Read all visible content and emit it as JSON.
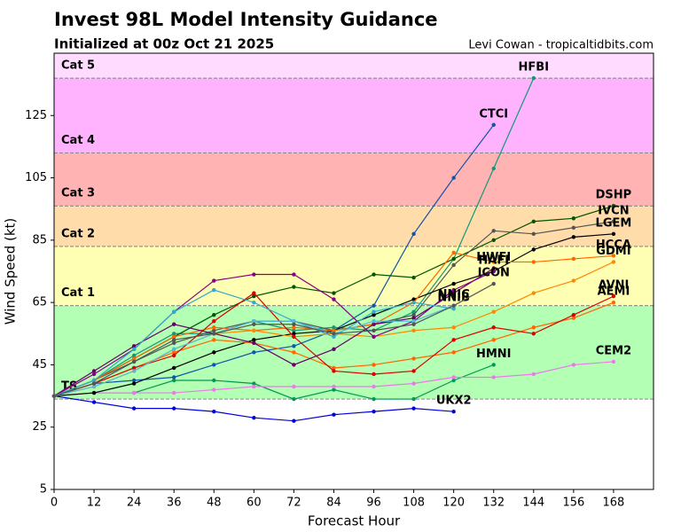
{
  "chart_data": {
    "type": "line",
    "title": "Invest 98L Model Intensity Guidance",
    "subtitle": "Initialized at 00z Oct 21 2025",
    "credit": "Levi Cowan - tropicaltidbits.com",
    "x_label": "Forecast Hour",
    "y_label": "Wind Speed (kt)",
    "xlim": [
      0,
      180
    ],
    "ylim": [
      5,
      145
    ],
    "xticks": [
      0,
      12,
      24,
      36,
      48,
      60,
      72,
      84,
      96,
      108,
      120,
      132,
      144,
      156,
      168
    ],
    "yticks": [
      5,
      25,
      45,
      65,
      85,
      105,
      125
    ],
    "bands": [
      {
        "label": "TS",
        "from": 34,
        "to": 64,
        "color": "#b3ffb3",
        "label_color": "#66aa66"
      },
      {
        "label": "Cat 1",
        "from": 64,
        "to": 83,
        "color": "#ffffb3",
        "label_color": "#aaaa33"
      },
      {
        "label": "Cat 2",
        "from": 83,
        "to": 96,
        "color": "#ffdcaa",
        "label_color": "#aa7733"
      },
      {
        "label": "Cat 3",
        "from": 96,
        "to": 113,
        "color": "#ffb3b3",
        "label_color": "#aa3333"
      },
      {
        "label": "Cat 4",
        "from": 113,
        "to": 137,
        "color": "#ffb3ff",
        "label_color": "#aa33aa"
      },
      {
        "label": "Cat 5",
        "from": 137,
        "to": 145,
        "color": "#ffdcff",
        "label_color": "#bb66bb"
      }
    ],
    "x": [
      0,
      12,
      24,
      36,
      48,
      60,
      72,
      84,
      96,
      108,
      120,
      132,
      144,
      156,
      168
    ],
    "series": [
      {
        "name": "UKX2",
        "color": "#0000dd",
        "values": [
          35,
          33,
          31,
          31,
          30,
          28,
          27,
          29,
          30,
          31,
          30,
          null,
          null,
          null,
          null
        ]
      },
      {
        "name": "HMNI",
        "color": "#009955",
        "values": [
          35,
          36,
          36,
          40,
          40,
          39,
          34,
          37,
          34,
          34,
          40,
          45,
          null,
          null,
          null
        ]
      },
      {
        "name": "CEM2",
        "color": "#ee77ee",
        "values": [
          35,
          36,
          36,
          36,
          37,
          38,
          38,
          38,
          38,
          39,
          41,
          41,
          42,
          45,
          46
        ]
      },
      {
        "name": "HFBI",
        "color": "#119977",
        "values": [
          35,
          40,
          48,
          55,
          55,
          59,
          56,
          57,
          56,
          62,
          79,
          108,
          137,
          null,
          null
        ]
      },
      {
        "name": "CTCI",
        "color": "#1155aa",
        "values": [
          35,
          39,
          40,
          41,
          45,
          49,
          51,
          56,
          64,
          87,
          105,
          122,
          null,
          null,
          null
        ]
      },
      {
        "name": "DSHP",
        "color": "#005500",
        "values": [
          35,
          40,
          47,
          54,
          61,
          67,
          70,
          68,
          74,
          73,
          79,
          85,
          91,
          92,
          96
        ]
      },
      {
        "name": "IVCN",
        "color": "#555555",
        "values": [
          35,
          40,
          46,
          52,
          56,
          59,
          59,
          56,
          58,
          61,
          77,
          88,
          87,
          89,
          91
        ]
      },
      {
        "name": "LGEM",
        "color": "#000000",
        "values": [
          35,
          36,
          39,
          44,
          49,
          53,
          55,
          56,
          61,
          66,
          71,
          75,
          82,
          86,
          87
        ]
      },
      {
        "name": "HCCA",
        "color": "#ff6600",
        "values": [
          35,
          40,
          47,
          54,
          57,
          56,
          57,
          56,
          58,
          65,
          81,
          78,
          78,
          79,
          80
        ]
      },
      {
        "name": "GDMI",
        "color": "#ff8800",
        "values": [
          35,
          38,
          43,
          50,
          55,
          56,
          54,
          55,
          54,
          56,
          57,
          62,
          68,
          72,
          78
        ]
      },
      {
        "name": "AEMI",
        "color": "#ff6600",
        "values": [
          35,
          39,
          44,
          49,
          53,
          52,
          49,
          44,
          45,
          47,
          49,
          53,
          57,
          60,
          65
        ]
      },
      {
        "name": "AVNI",
        "color": "#dd0000",
        "values": [
          35,
          39,
          44,
          48,
          59,
          68,
          54,
          43,
          42,
          43,
          53,
          57,
          55,
          61,
          67
        ]
      },
      {
        "name": "HWFI",
        "color": "#660066",
        "values": [
          35,
          43,
          51,
          58,
          55,
          52,
          45,
          50,
          58,
          60,
          68,
          76,
          null,
          null,
          null
        ]
      },
      {
        "name": "HAFI",
        "color": "#880088",
        "values": [
          35,
          42,
          50,
          62,
          72,
          74,
          74,
          66,
          54,
          59,
          69,
          75,
          null,
          null,
          null
        ]
      },
      {
        "name": "NNIB",
        "color": "#33aacc",
        "values": [
          35,
          40,
          50,
          62,
          69,
          65,
          59,
          54,
          62,
          65,
          63,
          null,
          null,
          null,
          null
        ]
      },
      {
        "name": "NNIC",
        "color": "#55bbdd",
        "values": [
          35,
          38,
          43,
          50,
          55,
          59,
          59,
          55,
          59,
          59,
          64,
          null,
          null,
          null,
          null
        ]
      },
      {
        "name": "ICON",
        "color": "#555555",
        "values": [
          35,
          39,
          46,
          53,
          55,
          58,
          58,
          55,
          56,
          58,
          64,
          71,
          null,
          null,
          null
        ]
      }
    ]
  }
}
